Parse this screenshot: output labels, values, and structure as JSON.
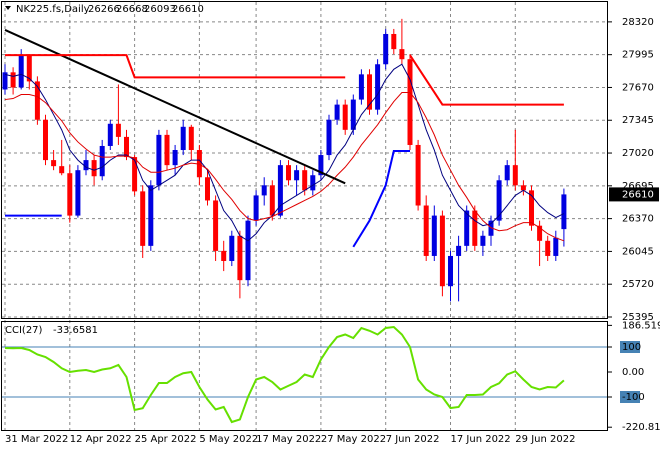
{
  "chart_data": [
    {
      "type": "candlestick",
      "title": "NK225.fs,Daily",
      "categories": [
        "31 Mar 2022",
        null,
        null,
        null,
        null,
        null,
        null,
        null,
        "12 Apr 2022",
        null,
        null,
        null,
        null,
        null,
        null,
        null,
        "25 Apr 2022",
        null,
        null,
        null,
        null,
        null,
        null,
        null,
        "5 May 2022",
        null,
        null,
        null,
        null,
        null,
        null,
        "17 May 2022",
        null,
        null,
        null,
        null,
        null,
        null,
        null,
        "27 May 2022",
        null,
        null,
        null,
        null,
        null,
        null,
        null,
        "7 Jun 2022",
        null,
        null,
        null,
        null,
        null,
        null,
        null,
        "17 Jun 2022",
        null,
        null,
        null,
        null,
        null,
        null,
        null,
        "29 Jun 2022",
        null,
        null,
        null,
        null,
        null,
        null
      ],
      "open": [
        27650,
        27820,
        27670,
        27990,
        27730,
        27350,
        26950,
        26890,
        26820,
        26400,
        26850,
        26950,
        26790,
        27090,
        27310,
        27180,
        26980,
        26640,
        26100,
        26700,
        27200,
        26900,
        27050,
        27280,
        27050,
        26780,
        26550,
        26050,
        25950,
        26200,
        25760,
        26350,
        26600,
        26700,
        26400,
        26900,
        26750,
        26850,
        26650,
        26800,
        27000,
        27350,
        27500,
        27250,
        27550,
        27800,
        27450,
        27900,
        28200,
        28050,
        27950,
        27100,
        26500,
        26000,
        26400,
        25700,
        26000,
        26100,
        26450,
        26100,
        26200,
        26350,
        26750,
        26900,
        26700,
        26650,
        26300,
        26150,
        26000,
        26266
      ],
      "high": [
        27900,
        27870,
        28050,
        28000,
        27780,
        27400,
        27050,
        27150,
        26900,
        26900,
        27050,
        27000,
        27150,
        27350,
        27700,
        27250,
        27000,
        26700,
        26750,
        27250,
        27250,
        27100,
        27350,
        27300,
        27100,
        26850,
        26600,
        26150,
        26250,
        26250,
        26400,
        26650,
        26780,
        26750,
        26950,
        26950,
        26900,
        26900,
        26850,
        27050,
        27400,
        27550,
        27550,
        27600,
        27850,
        27850,
        27950,
        28250,
        28250,
        28350,
        28000,
        27150,
        26600,
        26500,
        26450,
        26050,
        26200,
        26500,
        26500,
        26250,
        26400,
        26800,
        26950,
        27250,
        26750,
        26700,
        26350,
        26200,
        26250,
        26668
      ],
      "low": [
        27600,
        27600,
        27650,
        27650,
        27300,
        26900,
        26850,
        26800,
        26330,
        26380,
        26800,
        26700,
        26750,
        27050,
        27100,
        26950,
        26600,
        25980,
        26050,
        26650,
        26850,
        26800,
        27000,
        26950,
        26700,
        26500,
        25950,
        25850,
        25900,
        25580,
        25700,
        26300,
        26500,
        26350,
        26380,
        26700,
        26600,
        26600,
        26600,
        26750,
        26950,
        27300,
        27200,
        27200,
        27500,
        27400,
        27400,
        27850,
        28000,
        27900,
        27050,
        26450,
        25950,
        25950,
        25600,
        25550,
        25550,
        26050,
        26050,
        26000,
        26100,
        26300,
        26700,
        26650,
        26600,
        26250,
        25900,
        25950,
        25950,
        26093
      ],
      "close": [
        27820,
        27670,
        27990,
        27730,
        27350,
        26950,
        26890,
        26820,
        26400,
        26850,
        26950,
        26790,
        27090,
        27310,
        27180,
        26980,
        26640,
        26100,
        26700,
        27200,
        26900,
        27050,
        27280,
        27050,
        26780,
        26550,
        26050,
        25950,
        26200,
        25760,
        26350,
        26600,
        26700,
        26400,
        26900,
        26750,
        26850,
        26650,
        26800,
        27000,
        27350,
        27500,
        27250,
        27550,
        27800,
        27450,
        27900,
        28200,
        28050,
        27950,
        27100,
        26500,
        26000,
        26400,
        25700,
        26000,
        26100,
        26450,
        26100,
        26200,
        26350,
        26750,
        26900,
        26700,
        26650,
        26300,
        26150,
        26000,
        26180,
        26610
      ],
      "up_color": "#0000e0",
      "down_color": "#ff0000",
      "series": [
        {
          "color": "#000080",
          "values": [
            27800,
            27780,
            27800,
            27760,
            27680,
            27550,
            27400,
            27250,
            27050,
            26950,
            26880,
            26850,
            26880,
            26950,
            27000,
            27000,
            26950,
            26750,
            26650,
            26700,
            26750,
            26800,
            26900,
            26950,
            26950,
            26850,
            26650,
            26450,
            26350,
            26200,
            26150,
            26220,
            26330,
            26400,
            26500,
            26550,
            26600,
            26650,
            26700,
            26750,
            26850,
            27000,
            27100,
            27250,
            27400,
            27500,
            27600,
            27750,
            27850,
            27900,
            27750,
            27500,
            27250,
            27050,
            26800,
            26650,
            26500,
            26420,
            26350,
            26300,
            26320,
            26400,
            26500,
            26600,
            26650,
            26600,
            26500,
            26430,
            26380,
            26420
          ]
        },
        {
          "color": "#e00000",
          "values": [
            27550,
            27560,
            27600,
            27600,
            27580,
            27520,
            27430,
            27340,
            27220,
            27130,
            27060,
            27000,
            26980,
            26980,
            26990,
            26990,
            26970,
            26880,
            26830,
            26830,
            26850,
            26870,
            26900,
            26920,
            26910,
            26860,
            26760,
            26650,
            26560,
            26450,
            26370,
            26350,
            26370,
            26390,
            26430,
            26470,
            26510,
            26550,
            26590,
            26640,
            26710,
            26800,
            26880,
            26980,
            27100,
            27200,
            27300,
            27420,
            27530,
            27620,
            27620,
            27520,
            27370,
            27200,
            27000,
            26850,
            26700,
            26580,
            26450,
            26350,
            26280,
            26250,
            26260,
            26300,
            26330,
            26330,
            26280,
            26220,
            26180,
            26150
          ]
        }
      ],
      "overlays": [
        {
          "color": "#000000",
          "x": [
            0,
            42
          ],
          "values": [
            28240,
            26720
          ]
        },
        {
          "color": "#ff0000",
          "x": [
            0,
            15,
            16,
            42,
            42,
            50,
            54,
            69
          ],
          "values": [
            27990,
            27990,
            27770,
            27770,
            null,
            27990,
            27500,
            27500
          ]
        },
        {
          "color": "#0000ff",
          "x": [
            0,
            7,
            7,
            43,
            45,
            47,
            48,
            50
          ],
          "values": [
            26400,
            26400,
            null,
            26090,
            26350,
            26700,
            27040,
            27040
          ]
        }
      ],
      "ylim": [
        25385,
        28517
      ],
      "yticks": [
        28320,
        27995,
        27670,
        27345,
        27020,
        26695,
        26370,
        26045,
        25720,
        25395
      ],
      "grid": true
    },
    {
      "type": "line",
      "title": "CCI(27)",
      "color": "#66e000",
      "values": [
        96,
        95,
        96,
        88,
        70,
        60,
        40,
        15,
        0,
        5,
        8,
        0,
        10,
        15,
        28,
        -20,
        -152,
        -145,
        -92,
        -44,
        -44,
        -20,
        -5,
        0,
        -60,
        -110,
        -150,
        -140,
        -200,
        -190,
        -100,
        -30,
        -20,
        -40,
        -70,
        -55,
        -40,
        -10,
        -20,
        50,
        100,
        140,
        150,
        136,
        176,
        165,
        150,
        176,
        180,
        150,
        100,
        -30,
        -70,
        -90,
        -100,
        -144,
        -140,
        -92,
        -92,
        -90,
        -60,
        -45,
        -10,
        3,
        -30,
        -60,
        -70,
        -60,
        -62,
        -33.6581
      ],
      "ylim": [
        -232,
        200
      ],
      "yticks": [
        {
          "value": 186.5198,
          "label": "186.5198"
        },
        100,
        {
          "value": 0,
          "label": "0.00"
        },
        -100,
        -220.811
      ],
      "levels": [
        100,
        -100
      ]
    }
  ]
}
